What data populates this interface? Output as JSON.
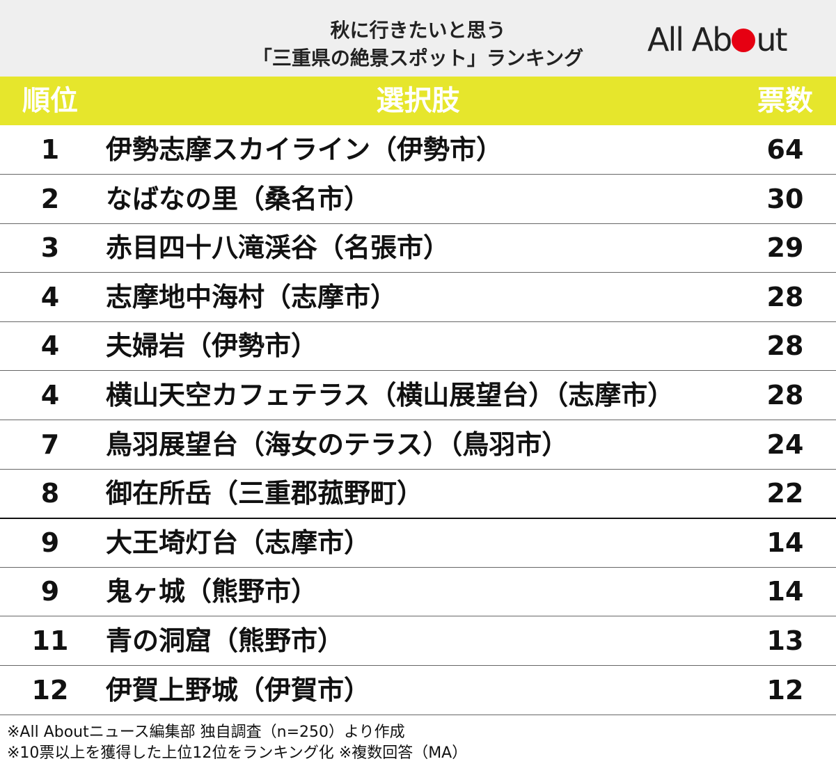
{
  "header": {
    "title": [
      "秋に行きたいと思う",
      "「三重県の絶景スポット」ランキング"
    ],
    "logo": {
      "before": "All Ab",
      "after": "ut"
    }
  },
  "table": {
    "columns": [
      "順位",
      "選択肢",
      "票数"
    ],
    "rows": [
      [
        "1",
        "伊勢志摩スカイライン（伊勢市）",
        "64"
      ],
      [
        "2",
        "なばなの里（桑名市）",
        "30"
      ],
      [
        "3",
        "赤目四十八滝渓谷（名張市）",
        "29"
      ],
      [
        "4",
        "志摩地中海村（志摩市）",
        "28"
      ],
      [
        "4",
        "夫婦岩（伊勢市）",
        "28"
      ],
      [
        "4",
        "横山天空カフェテラス（横山展望台）（志摩市）",
        "28"
      ],
      [
        "7",
        "鳥羽展望台（海女のテラス）（鳥羽市）",
        "24"
      ],
      [
        "8",
        "御在所岳（三重郡菰野町）",
        "22"
      ],
      [
        "9",
        "大王埼灯台（志摩市）",
        "14"
      ],
      [
        "9",
        "鬼ヶ城（熊野市）",
        "14"
      ],
      [
        "11",
        "青の洞窟（熊野市）",
        "13"
      ],
      [
        "12",
        "伊賀上野城（伊賀市）",
        "12"
      ]
    ]
  },
  "footnotes": [
    "※All Aboutニュース編集部 独自調査（n=250）より作成",
    "※10票以上を獲得した上位12位をランキング化 ※複数回答（MA）"
  ]
}
